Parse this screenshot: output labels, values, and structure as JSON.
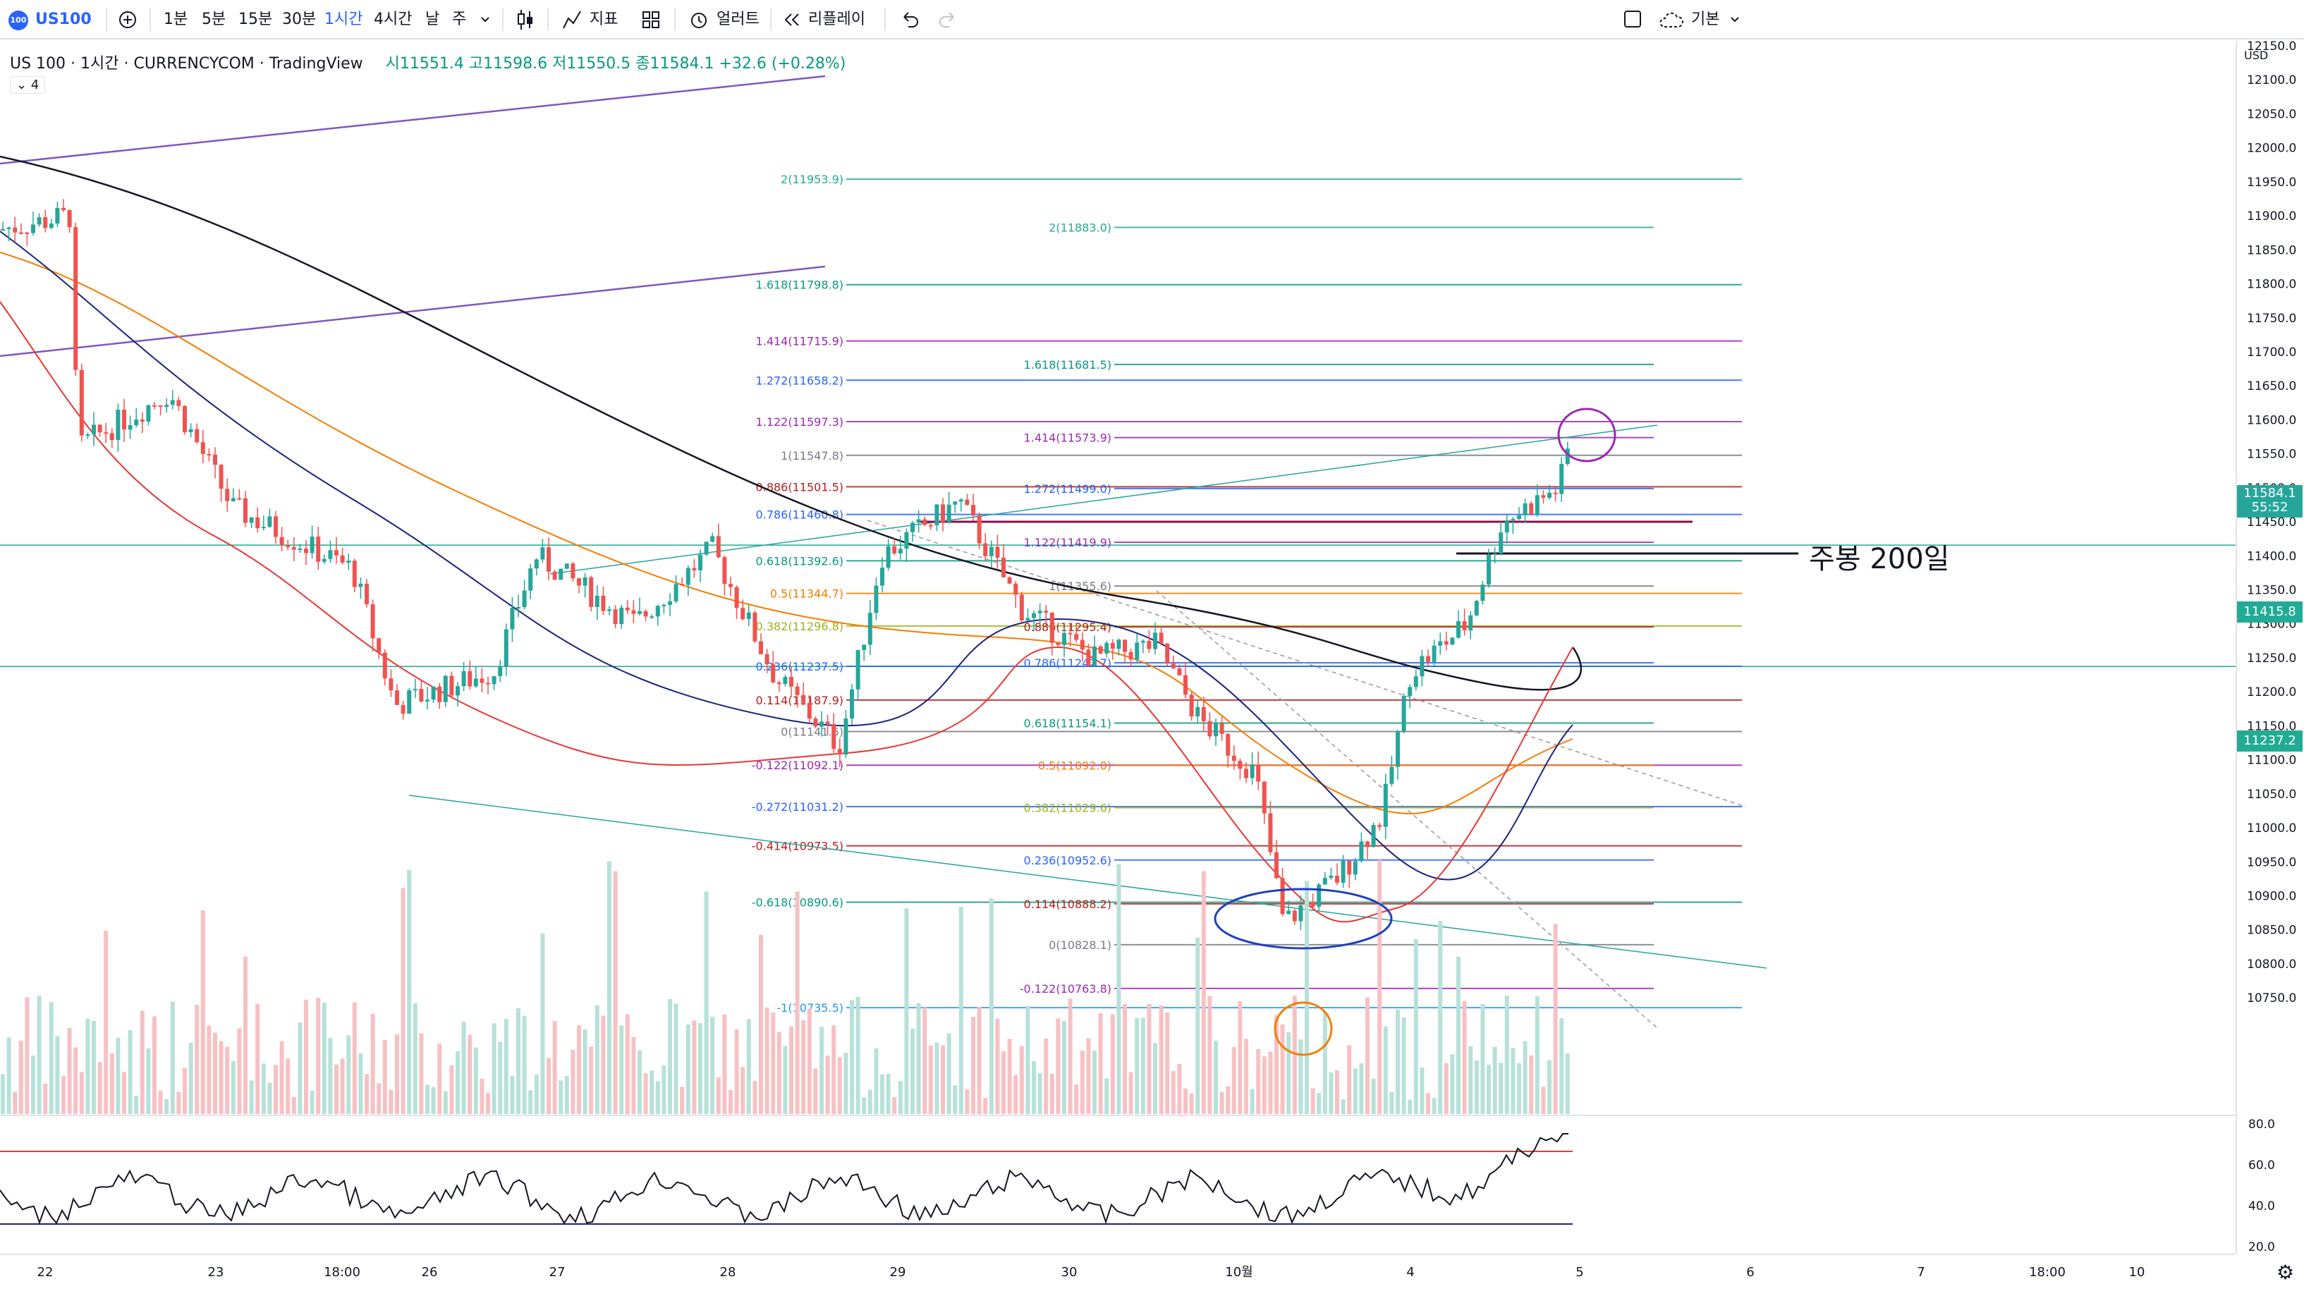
{
  "toolbar": {
    "symbol": "US100",
    "symbol_logo": "100",
    "add_symbol_icon": "plus-circle-icon",
    "intervals": [
      "1분",
      "5분",
      "15분",
      "30분",
      "1시간",
      "4시간",
      "날",
      "주"
    ],
    "active_interval": "1시간",
    "interval_dropdown_icon": "chevron-down-icon",
    "chart_type_icon": "candles-icon",
    "indicators_label": "지표",
    "layouts_icon": "layout-grid-icon",
    "alert_label": "얼러트",
    "replay_label": "리플레이",
    "undo_icon": "undo-icon",
    "redo_icon": "redo-icon",
    "layout_label": "기본"
  },
  "legend": {
    "title": "US 100 · 1시간 · CURRENCYCOM · TradingView",
    "ohlc": "시11551.4 고11598.6 저11550.5 종11584.1 +32.6 (+0.28%)",
    "indicator_count": "4"
  },
  "price_scale": {
    "currency": "USD",
    "labels": [
      "12150.0",
      "12100.0",
      "12050.0",
      "12000.0",
      "11950.0",
      "11900.0",
      "11850.0",
      "11800.0",
      "11750.0",
      "11700.0",
      "11650.0",
      "11600.0",
      "11550.0",
      "11500.0",
      "11450.0",
      "11400.0",
      "11350.0",
      "11300.0",
      "11250.0",
      "11200.0",
      "11150.0",
      "11100.0",
      "11050.0",
      "11000.0",
      "10950.0",
      "10900.0",
      "10850.0",
      "10800.0",
      "10750.0"
    ],
    "current_price": "11584.1",
    "countdown": "55:52",
    "tag_1": "11415.8",
    "tag_2": "11237.2"
  },
  "rsi_scale": {
    "labels": [
      "80.0",
      "60.0",
      "40.0",
      "20.0"
    ]
  },
  "time_scale": {
    "labels": [
      "22",
      "23",
      "18:00",
      "26",
      "27",
      "28",
      "29",
      "30",
      "10월",
      "4",
      "5",
      "6",
      "7",
      "18:00",
      "10"
    ]
  },
  "fib_left": [
    {
      "label": "2(11953.9)",
      "color": "#22ab94"
    },
    {
      "label": "1.618(11798.8)",
      "color": "#089981"
    },
    {
      "label": "1.414(11715.9)",
      "color": "#9c27b0"
    },
    {
      "label": "1.272(11658.2)",
      "color": "#2962ff"
    },
    {
      "label": "1.122(11597.3)",
      "color": "#9c27b0"
    },
    {
      "label": "1(11547.8)",
      "color": "#787b86"
    },
    {
      "label": "0.886(11501.5)",
      "color": "#b71c1c"
    },
    {
      "label": "0.786(11460.8)",
      "color": "#2962ff"
    },
    {
      "label": "0.618(11392.6)",
      "color": "#089981"
    },
    {
      "label": "0.5(11344.7)",
      "color": "#f57c00"
    },
    {
      "label": "0.382(11296.8)",
      "color": "#9cb31a"
    },
    {
      "label": "0.236(11237.5)",
      "color": "#2962ff"
    },
    {
      "label": "0.114(11187.9)",
      "color": "#b71c1c"
    },
    {
      "label": "0(11141.6)",
      "color": "#787b86"
    },
    {
      "label": "-0.122(11092.1)",
      "color": "#9c27b0"
    },
    {
      "label": "-0.272(11031.2)",
      "color": "#2962ff"
    },
    {
      "label": "-0.414(10973.5)",
      "color": "#b71c1c"
    },
    {
      "label": "-0.618(10890.6)",
      "color": "#089981"
    },
    {
      "label": "-1(10735.5)",
      "color": "#2196f3"
    }
  ],
  "fib_right": [
    {
      "label": "2(11883.0)",
      "color": "#22ab94"
    },
    {
      "label": "1.618(11681.5)",
      "color": "#089981"
    },
    {
      "label": "1.414(11573.9)",
      "color": "#9c27b0"
    },
    {
      "label": "1.272(11499.0)",
      "color": "#2962ff"
    },
    {
      "label": "1.122(11419.9)",
      "color": "#9c27b0"
    },
    {
      "label": "1(11355.6)",
      "color": "#787b86"
    },
    {
      "label": "0.886(11295.4)",
      "color": "#b71c1c"
    },
    {
      "label": "0.786(11242.7)",
      "color": "#2962ff"
    },
    {
      "label": "0.618(11154.1)",
      "color": "#089981"
    },
    {
      "label": "0.5(11092.0)",
      "color": "#f57c00"
    },
    {
      "label": "0.382(11029.6)",
      "color": "#9cb31a"
    },
    {
      "label": "0.236(10952.6)",
      "color": "#2962ff"
    },
    {
      "label": "0.114(10888.2)",
      "color": "#b71c1c"
    },
    {
      "label": "0(10828.1)",
      "color": "#787b86"
    },
    {
      "label": "-0.122(10763.8)",
      "color": "#9c27b0"
    }
  ],
  "annotation": "주봉 200일",
  "colors": {
    "up": "#26a69a",
    "down": "#ef5350",
    "accent": "#2962ff",
    "vol_up": "#b7e1d9",
    "vol_down": "#f7c1c3"
  }
}
